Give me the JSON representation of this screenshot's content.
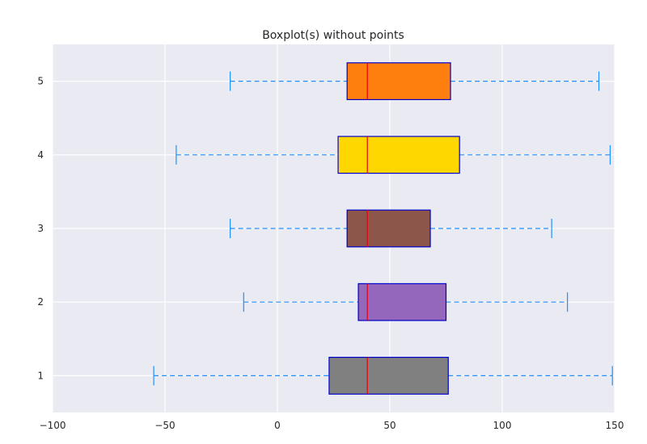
{
  "chart_data": {
    "type": "boxplot",
    "orientation": "horizontal",
    "title": "Boxplot(s) without points",
    "xlabel": "",
    "ylabel": "",
    "xlim": [
      -100,
      150
    ],
    "ylim": [
      0.5,
      5.5
    ],
    "grid": true,
    "x_ticks": [
      -100,
      -50,
      0,
      50,
      100,
      150
    ],
    "x_tick_labels": [
      "−100",
      "−50",
      "0",
      "50",
      "100",
      "150"
    ],
    "y_ticks": [
      1,
      2,
      3,
      4,
      5
    ],
    "y_tick_labels": [
      "1",
      "2",
      "3",
      "4",
      "5"
    ],
    "colors": {
      "background": "#eaeaf2",
      "grid": "#ffffff",
      "box_edge": "#0000cc",
      "median": "#e8000b",
      "whisker": "#1e90ff"
    },
    "series": [
      {
        "position": 1,
        "whisker_low": -55,
        "q1": 23,
        "median": 40,
        "q3": 76,
        "whisker_high": 149,
        "color": "#808080"
      },
      {
        "position": 2,
        "whisker_low": -15,
        "q1": 36,
        "median": 40,
        "q3": 75,
        "whisker_high": 129,
        "color": "#9467bd"
      },
      {
        "position": 3,
        "whisker_low": -21,
        "q1": 31,
        "median": 40,
        "q3": 68,
        "whisker_high": 122,
        "color": "#8c564b"
      },
      {
        "position": 4,
        "whisker_low": -45,
        "q1": 27,
        "median": 40,
        "q3": 81,
        "whisker_high": 148,
        "color": "#ffd700"
      },
      {
        "position": 5,
        "whisker_low": -21,
        "q1": 31,
        "median": 40,
        "q3": 77,
        "whisker_high": 143,
        "color": "#ff7f0e"
      }
    ]
  }
}
